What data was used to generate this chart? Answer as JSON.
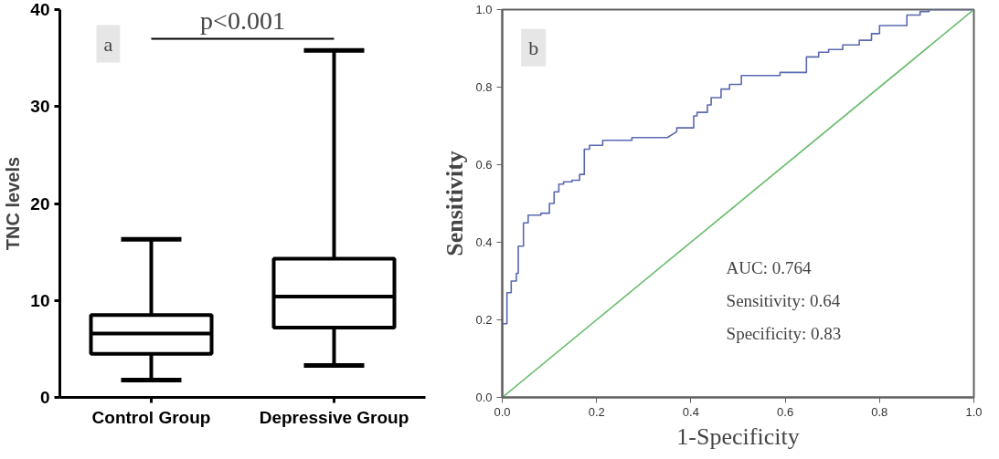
{
  "chart_data": [
    {
      "type": "box",
      "ylabel": "TNC levels",
      "categories": [
        "Control Group",
        "Depressive Group"
      ],
      "boxes": [
        {
          "low": 1.8,
          "q1": 4.5,
          "median": 6.6,
          "q3": 8.5,
          "high": 16.3
        },
        {
          "low": 3.3,
          "q1": 7.2,
          "median": 10.4,
          "q3": 14.3,
          "high": 35.8
        }
      ],
      "color": "#000000",
      "ylim": [
        0,
        40
      ],
      "yticks": [
        0,
        10,
        20,
        30,
        40
      ],
      "grid": false,
      "annotations": [
        "a",
        "p<0.001"
      ]
    },
    {
      "type": "line",
      "xlabel": "1-Specificity",
      "ylabel": "Sensitivity",
      "series": [
        {
          "color": "#5a68b0",
          "x": [
            0,
            0,
            0.01,
            0.01,
            0.019,
            0.019,
            0.03,
            0.03,
            0.034,
            0.034,
            0.045,
            0.045,
            0.055,
            0.055,
            0.082,
            0.082,
            0.1,
            0.1,
            0.11,
            0.11,
            0.12,
            0.12,
            0.13,
            0.13,
            0.148,
            0.148,
            0.164,
            0.164,
            0.174,
            0.174,
            0.185,
            0.185,
            0.213,
            0.213,
            0.275,
            0.275,
            0.35,
            0.37,
            0.37,
            0.406,
            0.406,
            0.413,
            0.413,
            0.435,
            0.435,
            0.443,
            0.443,
            0.464,
            0.464,
            0.482,
            0.482,
            0.507,
            0.507,
            0.589,
            0.589,
            0.645,
            0.645,
            0.671,
            0.671,
            0.692,
            0.692,
            0.722,
            0.722,
            0.757,
            0.757,
            0.783,
            0.783,
            0.8,
            0.8,
            0.858,
            0.858,
            0.886,
            0.886,
            0.905,
            0.905,
            1.0
          ],
          "values": [
            0,
            0.19,
            0.19,
            0.27,
            0.27,
            0.3,
            0.3,
            0.32,
            0.32,
            0.39,
            0.39,
            0.45,
            0.45,
            0.47,
            0.47,
            0.475,
            0.475,
            0.5,
            0.5,
            0.53,
            0.53,
            0.55,
            0.55,
            0.556,
            0.556,
            0.56,
            0.56,
            0.575,
            0.575,
            0.64,
            0.64,
            0.65,
            0.65,
            0.663,
            0.663,
            0.67,
            0.67,
            0.685,
            0.695,
            0.695,
            0.726,
            0.726,
            0.735,
            0.735,
            0.754,
            0.754,
            0.773,
            0.773,
            0.795,
            0.795,
            0.807,
            0.807,
            0.83,
            0.83,
            0.838,
            0.838,
            0.878,
            0.878,
            0.89,
            0.89,
            0.897,
            0.897,
            0.909,
            0.909,
            0.921,
            0.921,
            0.938,
            0.938,
            0.959,
            0.959,
            0.986,
            0.986,
            0.995,
            0.995,
            1.0,
            1.0
          ]
        },
        {
          "color": "#66bb6a",
          "x": [
            0,
            1
          ],
          "values": [
            0,
            1
          ]
        }
      ],
      "xlim": [
        0,
        1
      ],
      "ylim": [
        0,
        1
      ],
      "xticks": [
        {
          "value": 0,
          "label": "0.0"
        },
        {
          "value": 0.2,
          "label": "0.2"
        },
        {
          "value": 0.4,
          "label": "0.4"
        },
        {
          "value": 0.6,
          "label": "0.6"
        },
        {
          "value": 0.8,
          "label": "0.8"
        },
        {
          "value": 1,
          "label": "1.0"
        }
      ],
      "yticks": [
        {
          "value": 0,
          "label": "0.0"
        },
        {
          "value": 0.2,
          "label": "0.2"
        },
        {
          "value": 0.4,
          "label": "0.4"
        },
        {
          "value": 0.6,
          "label": "0.6"
        },
        {
          "value": 0.8,
          "label": "0.8"
        },
        {
          "value": 1,
          "label": "1.0"
        }
      ],
      "grid": false,
      "annotations": [
        "b",
        "AUC: 0.764",
        "Sensitivity: 0.64",
        "Specificity: 0.83"
      ]
    }
  ]
}
